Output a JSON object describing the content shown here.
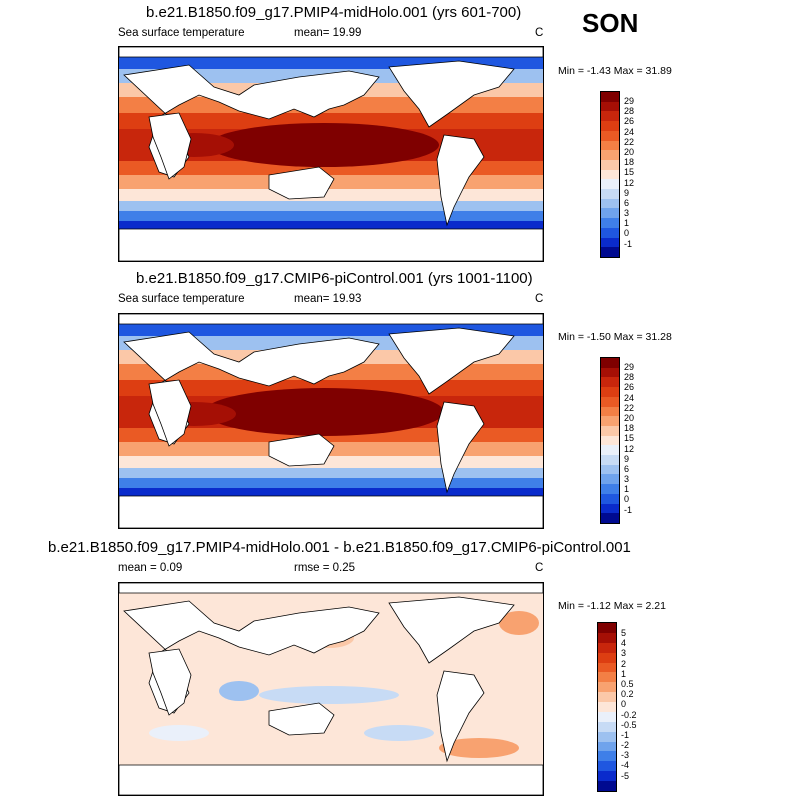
{
  "season": "SON",
  "panels": [
    {
      "title": "b.e21.B1850.f09_g17.PMIP4-midHolo.001 (yrs 601-700)",
      "left_label": "Sea surface temperature",
      "center_label": "mean=  19.99",
      "units": "C",
      "min_max": "Min =  -1.43 Max =  31.89",
      "colorbar_ticks": [
        "29",
        "28",
        "26",
        "24",
        "22",
        "20",
        "18",
        "15",
        "12",
        "9",
        "6",
        "3",
        "1",
        "0",
        "-1"
      ],
      "colors": [
        "#7f0000",
        "#a50f05",
        "#c8260c",
        "#dd3e12",
        "#ea5a24",
        "#f37f45",
        "#f8a270",
        "#fbc8a8",
        "#fde6d8",
        "#eaf0fa",
        "#c7dbf5",
        "#9dc1f0",
        "#6fa3ec",
        "#3f7fe8",
        "#1f57e0",
        "#0a2bcc",
        "#000a90"
      ]
    },
    {
      "title": "b.e21.B1850.f09_g17.CMIP6-piControl.001 (yrs 1001-1100)",
      "left_label": "Sea surface temperature",
      "center_label": "mean=  19.93",
      "units": "C",
      "min_max": "Min =  -1.50 Max =  31.28",
      "colorbar_ticks": [
        "29",
        "28",
        "26",
        "24",
        "22",
        "20",
        "18",
        "15",
        "12",
        "9",
        "6",
        "3",
        "1",
        "0",
        "-1"
      ],
      "colors": [
        "#7f0000",
        "#a50f05",
        "#c8260c",
        "#dd3e12",
        "#ea5a24",
        "#f37f45",
        "#f8a270",
        "#fbc8a8",
        "#fde6d8",
        "#eaf0fa",
        "#c7dbf5",
        "#9dc1f0",
        "#6fa3ec",
        "#3f7fe8",
        "#1f57e0",
        "#0a2bcc",
        "#000a90"
      ]
    },
    {
      "title": "b.e21.B1850.f09_g17.PMIP4-midHolo.001 - b.e21.B1850.f09_g17.CMIP6-piControl.001",
      "left_label": "mean =   0.09",
      "center_label": "rmse =   0.25",
      "units": "C",
      "min_max": "Min =  -1.12 Max =   2.21",
      "colorbar_ticks": [
        "5",
        "4",
        "3",
        "2",
        "1",
        "0.5",
        "0.2",
        "0",
        "-0.2",
        "-0.5",
        "-1",
        "-2",
        "-3",
        "-4",
        "-5"
      ],
      "colors": [
        "#7f0000",
        "#a50f05",
        "#c8260c",
        "#dd3e12",
        "#ea5a24",
        "#f37f45",
        "#f8a270",
        "#fbc8a8",
        "#fde6d8",
        "#eaf0fa",
        "#c7dbf5",
        "#9dc1f0",
        "#6fa3ec",
        "#3f7fe8",
        "#1f57e0",
        "#0a2bcc",
        "#000a90"
      ]
    }
  ]
}
